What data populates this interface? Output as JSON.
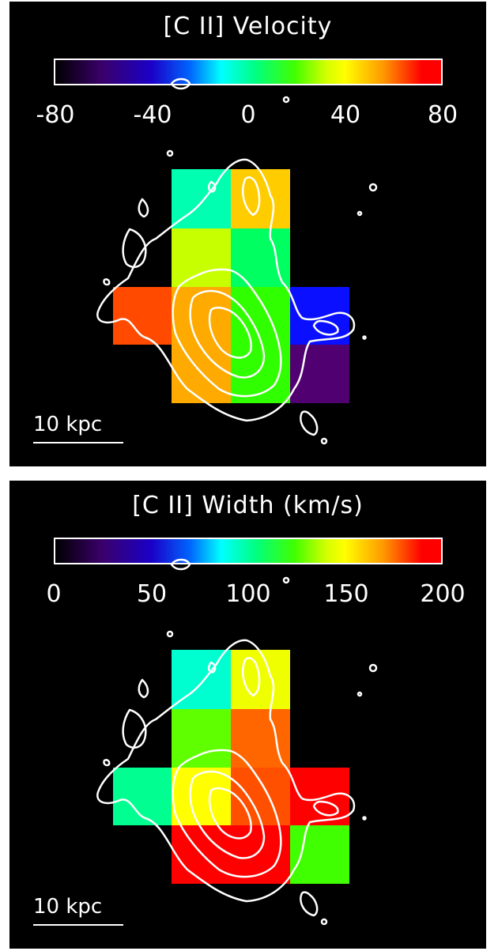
{
  "panels": [
    {
      "title": "[C II] Velocity",
      "colorbar_ticks": [
        "-80",
        "-40",
        "0",
        "40",
        "80"
      ],
      "scale_label": "10 kpc",
      "pixel_colors": {
        "r0c1": "#00ffb0",
        "r0c2": "#ffcc00",
        "r1c1": "#c8ff00",
        "r1c2": "#00ff60",
        "r2c0": "#ff4a00",
        "r2c1": "#ffaa00",
        "r2c2": "#30ff00",
        "r2c3": "#0a10ff",
        "r3c1": "#ffaa00",
        "r3c2": "#30ff00",
        "r3c3": "#500070"
      }
    },
    {
      "title": "[C II] Width (km/s)",
      "colorbar_ticks": [
        "0",
        "50",
        "100",
        "150",
        "200"
      ],
      "scale_label": "10 kpc",
      "pixel_colors": {
        "r0c1": "#00ffd0",
        "r0c2": "#f0ff00",
        "r1c1": "#60ff00",
        "r1c2": "#ff6600",
        "r2c0": "#00ff90",
        "r2c1": "#ffff00",
        "r2c2": "#ff5000",
        "r2c3": "#ff0000",
        "r3c1": "#ff0000",
        "r3c2": "#ff0000",
        "r3c3": "#40ff00"
      }
    }
  ]
}
